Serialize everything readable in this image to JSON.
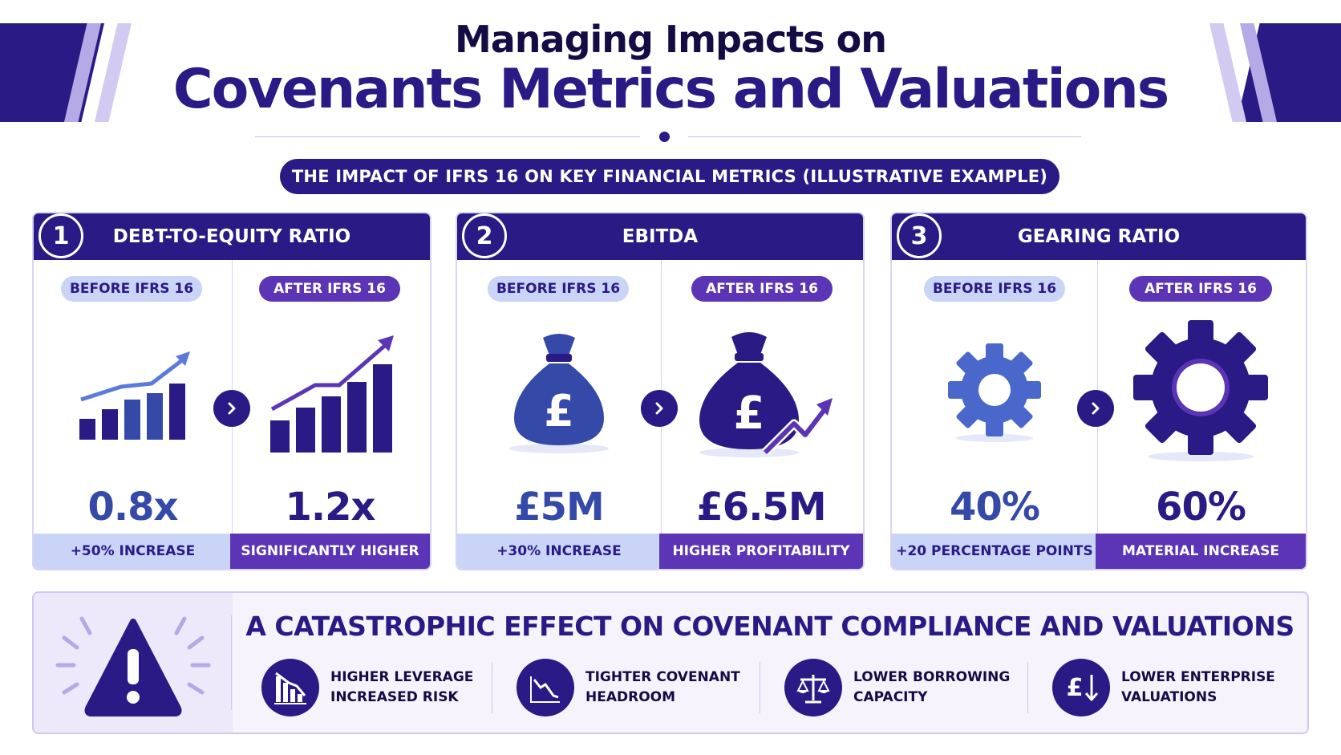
{
  "header": {
    "title_top": "Managing Impacts on",
    "title_main": "Covenants Metrics and Valuations",
    "subtitle": "THE IMPACT OF IFRS 16 ON KEY FINANCIAL METRICS (ILLUSTRATIVE EXAMPLE)"
  },
  "colors": {
    "primary": "#2a1a86",
    "before_fill": "#c9d4f7",
    "after_fill": "#5b35b5",
    "before_icon": "#3549a8",
    "light_stripe": "#b5a9e6"
  },
  "cards": [
    {
      "number": "1",
      "title": "DEBT-TO-EQUITY RATIO",
      "before_label": "BEFORE IFRS 16",
      "after_label": "AFTER IFRS 16",
      "before_value": "0.8x",
      "after_value": "1.2x",
      "before_note": "+50% INCREASE",
      "after_note": "SIGNIFICANTLY HIGHER",
      "before_icon": "bar-chart-rising-icon",
      "after_icon": "bar-chart-rising-icon"
    },
    {
      "number": "2",
      "title": "EBITDA",
      "before_label": "BEFORE IFRS 16",
      "after_label": "AFTER IFRS 16",
      "before_value": "£5M",
      "after_value": "£6.5M",
      "before_note": "+30% INCREASE",
      "after_note": "HIGHER PROFITABILITY",
      "before_icon": "money-bag-icon",
      "after_icon": "money-bag-trend-icon",
      "currency_symbol": "£"
    },
    {
      "number": "3",
      "title": "GEARING RATIO",
      "before_label": "BEFORE IFRS 16",
      "after_label": "AFTER IFRS 16",
      "before_value": "40%",
      "after_value": "60%",
      "before_note": "+20 PERCENTAGE POINTS",
      "after_note": "MATERIAL INCREASE",
      "before_icon": "gear-icon",
      "after_icon": "gear-icon"
    }
  ],
  "bottom": {
    "title": "A CATASTROPHIC EFFECT ON COVENANT COMPLIANCE AND VALUATIONS",
    "warning_icon": "warning-icon",
    "effects": [
      {
        "line1": "HIGHER LEVERAGE",
        "line2": "INCREASED RISK",
        "icon": "declining-bars-icon"
      },
      {
        "line1": "TIGHTER COVENANT",
        "line2": "HEADROOM",
        "icon": "downtrend-line-icon"
      },
      {
        "line1": "LOWER BORROWING",
        "line2": "CAPACITY",
        "icon": "scales-icon"
      },
      {
        "line1": "LOWER ENTERPRISE",
        "line2": "VALUATIONS",
        "icon": "pound-down-icon",
        "icon_glyph": "£"
      }
    ]
  }
}
